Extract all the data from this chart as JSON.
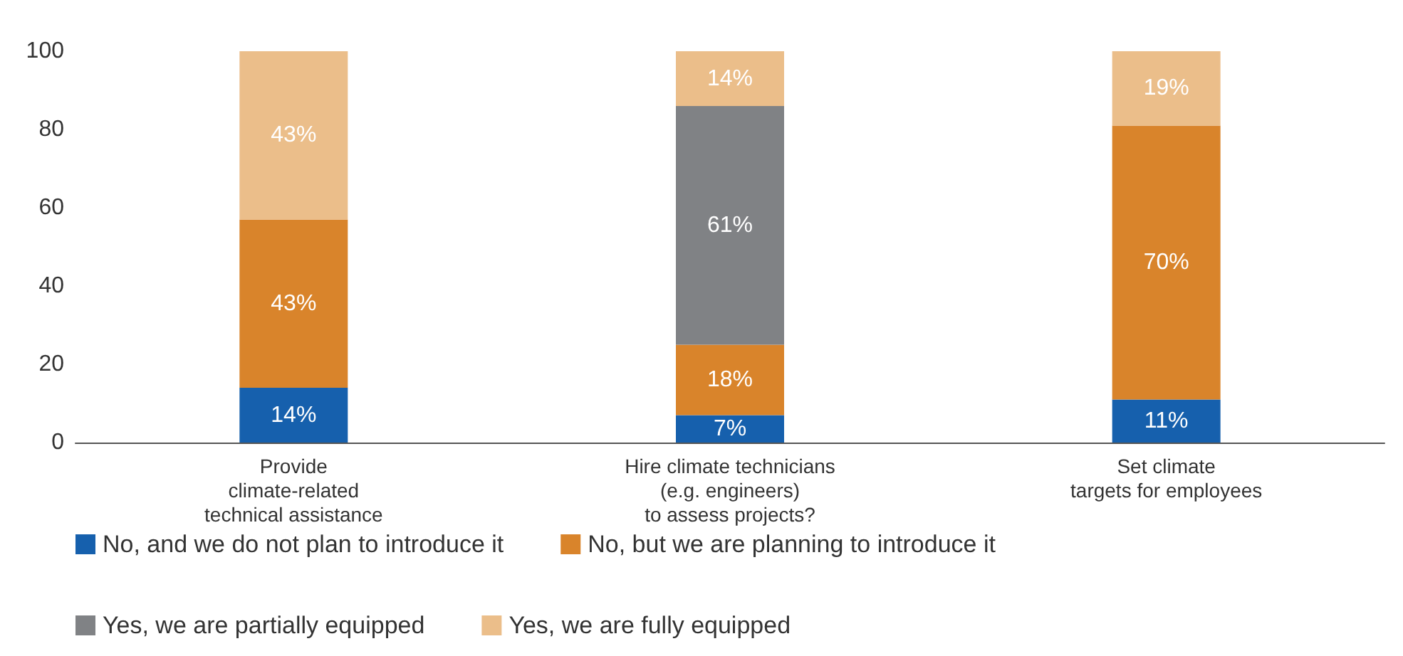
{
  "chart_data": {
    "type": "bar",
    "stacked": true,
    "categories": [
      "Provide\nclimate-related\ntechnical assistance",
      "Hire climate technicians\n(e.g. engineers)\nto assess projects?",
      "Set climate\ntargets for employees"
    ],
    "series": [
      {
        "name": "No, and we do not plan to introduce it",
        "color": "#1660ad",
        "values": [
          14,
          7,
          11
        ],
        "value_labels": [
          "14%",
          "7%",
          "11%"
        ]
      },
      {
        "name": "No, but we are planning to introduce it",
        "color": "#d9842b",
        "values": [
          43,
          18,
          70
        ],
        "value_labels": [
          "43%",
          "18%",
          "70%"
        ]
      },
      {
        "name": "Yes, we are partially equipped",
        "color": "#808285",
        "values": [
          null,
          61,
          null
        ],
        "value_labels": [
          null,
          "61%",
          null
        ]
      },
      {
        "name": "Yes, we are fully equipped",
        "color": "#ebbe8a",
        "values": [
          43,
          14,
          19
        ],
        "value_labels": [
          "43%",
          "14%",
          "19%"
        ]
      }
    ],
    "ylim": [
      0,
      100
    ],
    "yticks": [
      0,
      20,
      40,
      60,
      80,
      100
    ],
    "grid": false,
    "legend": "bottom"
  }
}
